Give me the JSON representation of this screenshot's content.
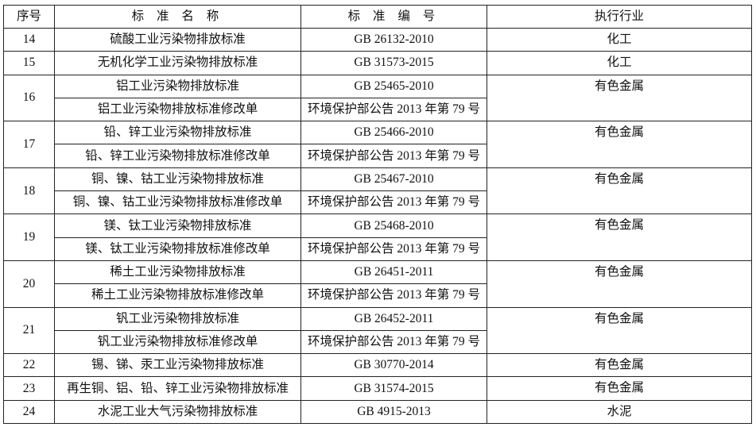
{
  "header": {
    "no": "序号",
    "name": "标 准 名 称",
    "code": "标 准 编 号",
    "industry": "执行行业"
  },
  "rows": [
    {
      "no": "14",
      "items": [
        {
          "name": "硫酸工业污染物排放标准",
          "code": "GB 26132-2010"
        }
      ],
      "industry": "化工"
    },
    {
      "no": "15",
      "items": [
        {
          "name": "无机化学工业污染物排放标准",
          "code": "GB 31573-2015"
        }
      ],
      "industry": "化工"
    },
    {
      "no": "16",
      "items": [
        {
          "name": "铝工业污染物排放标准",
          "code": "GB 25465-2010"
        },
        {
          "name": "铝工业污染物排放标准修改单",
          "code": "环境保护部公告 2013 年第 79 号"
        }
      ],
      "industry": "有色金属"
    },
    {
      "no": "17",
      "items": [
        {
          "name": "铅、锌工业污染物排放标准",
          "code": "GB 25466-2010"
        },
        {
          "name": "铅、锌工业污染物排放标准修改单",
          "code": "环境保护部公告 2013 年第 79 号"
        }
      ],
      "industry": "有色金属"
    },
    {
      "no": "18",
      "items": [
        {
          "name": "铜、镍、钴工业污染物排放标准",
          "code": "GB 25467-2010"
        },
        {
          "name": "铜、镍、钴工业污染物排放标准修改单",
          "code": "环境保护部公告 2013 年第 79 号"
        }
      ],
      "industry": "有色金属"
    },
    {
      "no": "19",
      "items": [
        {
          "name": "镁、钛工业污染物排放标准",
          "code": "GB 25468-2010"
        },
        {
          "name": "镁、钛工业污染物排放标准修改单",
          "code": "环境保护部公告 2013 年第 79 号"
        }
      ],
      "industry": "有色金属"
    },
    {
      "no": "20",
      "items": [
        {
          "name": "稀土工业污染物排放标准",
          "code": "GB 26451-2011"
        },
        {
          "name": "稀土工业污染物排放标准修改单",
          "code": "环境保护部公告 2013 年第 79 号"
        }
      ],
      "industry": "有色金属"
    },
    {
      "no": "21",
      "items": [
        {
          "name": "钒工业污染物排放标准",
          "code": "GB 26452-2011"
        },
        {
          "name": "钒工业污染物排放标准修改单",
          "code": "环境保护部公告 2013 年第 79 号"
        }
      ],
      "industry": "有色金属"
    },
    {
      "no": "22",
      "items": [
        {
          "name": "锡、锑、汞工业污染物排放标准",
          "code": "GB 30770-2014"
        }
      ],
      "industry": "有色金属"
    },
    {
      "no": "23",
      "items": [
        {
          "name": "再生铜、铝、铅、锌工业污染物排放标准",
          "code": "GB 31574-2015"
        }
      ],
      "industry": "有色金属"
    },
    {
      "no": "24",
      "items": [
        {
          "name": "水泥工业大气污染物排放标准",
          "code": "GB 4915-2013"
        }
      ],
      "industry": "水泥"
    }
  ]
}
